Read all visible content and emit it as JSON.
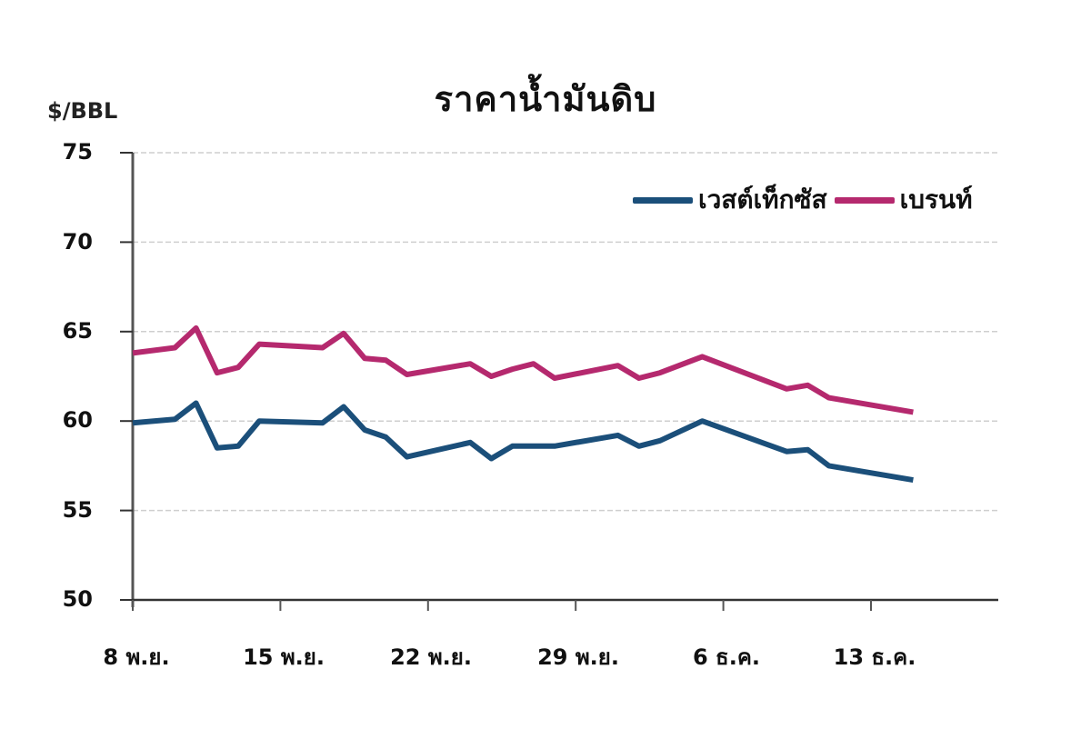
{
  "chart_data": {
    "type": "line",
    "title": "ราคาน้ำมันดิบ",
    "ylabel": "$/BBL",
    "xlabel": "",
    "ylim": [
      50,
      75
    ],
    "yticks": [
      50,
      55,
      60,
      65,
      70,
      75
    ],
    "grid": true,
    "legend_position": "top-right",
    "x_tick_labels": [
      "8 พ.ย.",
      "15 พ.ย.",
      "22 พ.ย.",
      "29 พ.ย.",
      "6 ธ.ค.",
      "13 ธ.ค."
    ],
    "x_days_from_start_of_ticks": [
      0,
      7,
      14,
      21,
      28,
      35
    ],
    "x_range_days": [
      0,
      41
    ],
    "series": [
      {
        "name": "เวสต์เท็กซัส",
        "color": "#1b4f7a",
        "points": [
          [
            0,
            59.9
          ],
          [
            2,
            60.1
          ],
          [
            3,
            61.0
          ],
          [
            4,
            58.5
          ],
          [
            5,
            58.6
          ],
          [
            6,
            60.0
          ],
          [
            9,
            59.9
          ],
          [
            10,
            60.8
          ],
          [
            11,
            59.5
          ],
          [
            12,
            59.1
          ],
          [
            13,
            58.0
          ],
          [
            16,
            58.8
          ],
          [
            17,
            57.9
          ],
          [
            18,
            58.6
          ],
          [
            20,
            58.6
          ],
          [
            23,
            59.2
          ],
          [
            24,
            58.6
          ],
          [
            25,
            58.9
          ],
          [
            27,
            60.0
          ],
          [
            31,
            58.3
          ],
          [
            32,
            58.4
          ],
          [
            33,
            57.5
          ],
          [
            37,
            56.7
          ]
        ]
      },
      {
        "name": "เบรนท์",
        "color": "#b5296e",
        "points": [
          [
            0,
            63.8
          ],
          [
            2,
            64.1
          ],
          [
            3,
            65.2
          ],
          [
            4,
            62.7
          ],
          [
            5,
            63.0
          ],
          [
            6,
            64.3
          ],
          [
            9,
            64.1
          ],
          [
            10,
            64.9
          ],
          [
            11,
            63.5
          ],
          [
            12,
            63.4
          ],
          [
            13,
            62.6
          ],
          [
            16,
            63.2
          ],
          [
            17,
            62.5
          ],
          [
            18,
            62.9
          ],
          [
            19,
            63.2
          ],
          [
            20,
            62.4
          ],
          [
            23,
            63.1
          ],
          [
            24,
            62.4
          ],
          [
            25,
            62.7
          ],
          [
            27,
            63.6
          ],
          [
            31,
            61.8
          ],
          [
            32,
            62.0
          ],
          [
            33,
            61.3
          ],
          [
            37,
            60.5
          ]
        ]
      }
    ]
  },
  "labels": {
    "title": "ราคาน้ำมันดิบ",
    "unit": "$/BBL",
    "legend": [
      "เวสต์เท็กซัส",
      "เบรนท์"
    ],
    "yticks": [
      "75",
      "70",
      "65",
      "60",
      "55",
      "50"
    ],
    "xticks": [
      "8 พ.ย.",
      "15 พ.ย.",
      "22 พ.ย.",
      "29 พ.ย.",
      "6 ธ.ค.",
      "13 ธ.ค."
    ]
  },
  "colors": {
    "wti": "#1b4f7a",
    "brent": "#b5296e",
    "axis": "#555555",
    "grid": "#cfcfcf"
  }
}
